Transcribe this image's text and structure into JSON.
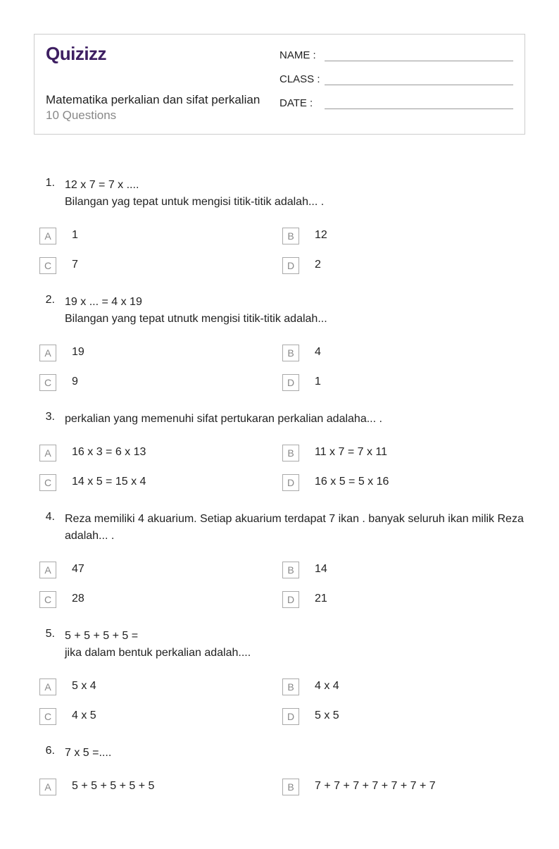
{
  "logo_text": "Quizizz",
  "quiz": {
    "title": "Matematika perkalian dan sifat perkalian",
    "count_label": "10 Questions"
  },
  "fields": {
    "name_label": "NAME :",
    "class_label": "CLASS :",
    "date_label": "DATE  :"
  },
  "questions": [
    {
      "num": "1.",
      "text": "12 x 7 = 7 x ....\nBilangan yag tepat untuk mengisi titik-titik adalah... .",
      "options": {
        "A": "1",
        "B": "12",
        "C": "7",
        "D": "2"
      }
    },
    {
      "num": "2.",
      "text": "19 x ... = 4 x 19\nBilangan yang tepat utnutk mengisi titik-titik adalah...",
      "options": {
        "A": "19",
        "B": "4",
        "C": "9",
        "D": "1"
      }
    },
    {
      "num": "3.",
      "text": "perkalian yang memenuhi sifat pertukaran perkalian adalaha... .",
      "options": {
        "A": "16 x 3 = 6 x 13",
        "B": "11 x 7 = 7 x 11",
        "C": "14 x 5 = 15 x 4",
        "D": "16 x 5 = 5 x 16"
      }
    },
    {
      "num": "4.",
      "text": "Reza memiliki 4 akuarium. Setiap akuarium terdapat 7 ikan . banyak seluruh ikan milik Reza adalah... .",
      "options": {
        "A": "47",
        "B": "14",
        "C": "28",
        "D": "21"
      }
    },
    {
      "num": "5.",
      "text": "5 + 5 + 5 + 5 =\njika dalam bentuk perkalian adalah....",
      "options": {
        "A": "5 x 4",
        "B": "4 x 4",
        "C": "4 x 5",
        "D": "5 x 5"
      }
    },
    {
      "num": "6.",
      "text": "7 x 5 =....",
      "options": {
        "A": "5 + 5 + 5 + 5 + 5",
        "B": "7 + 7 + 7 + 7 + 7 + 7 + 7"
      }
    }
  ],
  "styling": {
    "page_bg": "#ffffff",
    "text_color": "#222222",
    "muted_color": "#888888",
    "border_color": "#cccccc",
    "logo_color": "#3d1e61",
    "opt_border": "#aaaaaa"
  }
}
